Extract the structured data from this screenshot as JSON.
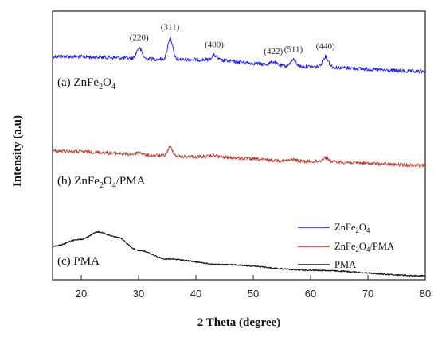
{
  "chart_data": {
    "type": "line",
    "xlabel": "2 Theta (degree)",
    "ylabel": "Intensity (a.u)",
    "xlim": [
      15,
      80
    ],
    "x_ticks": [
      "20",
      "30",
      "40",
      "50",
      "60",
      "70",
      "80"
    ],
    "y_tick_labels": "none",
    "grid": false,
    "legend_placement": "bottom-right",
    "series": [
      {
        "name": "ZnFe2O4",
        "legend_label": {
          "base": "ZnFe",
          "sub1": "2",
          "mid": "O",
          "sub2": "4",
          "tail": ""
        },
        "color": "#1a1aff",
        "curve_label": {
          "prefix": "(a) ",
          "base": "ZnFe",
          "sub1": "2",
          "mid": "O",
          "sub2": "4",
          "tail": ""
        },
        "baseline": [
          [
            15,
            71
          ],
          [
            40,
            75
          ],
          [
            60,
            84
          ],
          [
            80,
            90
          ]
        ],
        "noise": 2.4,
        "peaks": [
          {
            "x": 30.1,
            "height": 13,
            "width": 0.45
          },
          {
            "x": 35.5,
            "height": 27,
            "width": 0.42
          },
          {
            "x": 43.2,
            "height": 6,
            "width": 0.5
          },
          {
            "x": 53.5,
            "height": 4,
            "width": 0.5
          },
          {
            "x": 57.0,
            "height": 8,
            "width": 0.5
          },
          {
            "x": 62.6,
            "height": 13,
            "width": 0.5
          }
        ]
      },
      {
        "name": "ZnFe2O4/PMA",
        "legend_label": {
          "base": "ZnFe",
          "sub1": "2",
          "mid": "O",
          "sub2": "4",
          "tail": "/PMA"
        },
        "color": "#c0392b",
        "curve_label": {
          "prefix": "(b) ",
          "base": "ZnFe",
          "sub1": "2",
          "mid": "O",
          "sub2": "4",
          "tail": "/PMA"
        },
        "baseline": [
          [
            15,
            190
          ],
          [
            40,
            197
          ],
          [
            60,
            203
          ],
          [
            80,
            208
          ]
        ],
        "noise": 2.2,
        "peaks": [
          {
            "x": 30.1,
            "height": 3,
            "width": 0.5
          },
          {
            "x": 35.5,
            "height": 11,
            "width": 0.45
          },
          {
            "x": 43.2,
            "height": 2,
            "width": 0.5
          },
          {
            "x": 57.0,
            "height": 2,
            "width": 0.5
          },
          {
            "x": 62.6,
            "height": 5,
            "width": 0.5
          }
        ]
      },
      {
        "name": "PMA",
        "legend_label": {
          "base": "PMA",
          "sub1": "",
          "mid": "",
          "sub2": "",
          "tail": ""
        },
        "color": "#111111",
        "curve_label": {
          "prefix": "(c) ",
          "base": "PMA",
          "sub1": "",
          "mid": "",
          "sub2": "",
          "tail": ""
        },
        "baseline": [
          [
            15,
            310
          ],
          [
            20,
            301
          ],
          [
            23,
            292
          ],
          [
            26,
            298
          ],
          [
            30,
            315
          ],
          [
            35,
            326
          ],
          [
            45,
            333
          ],
          [
            60,
            340
          ],
          [
            80,
            347
          ]
        ],
        "noise": 0.8,
        "peaks": []
      }
    ],
    "peak_labels": [
      {
        "text": "(220)",
        "x": 30.1
      },
      {
        "text": "(311)",
        "x": 35.5
      },
      {
        "text": "(400)",
        "x": 43.2
      },
      {
        "text": "(422)",
        "x": 53.5
      },
      {
        "text": "(511)",
        "x": 57.0
      },
      {
        "text": "(440)",
        "x": 62.6
      }
    ]
  }
}
